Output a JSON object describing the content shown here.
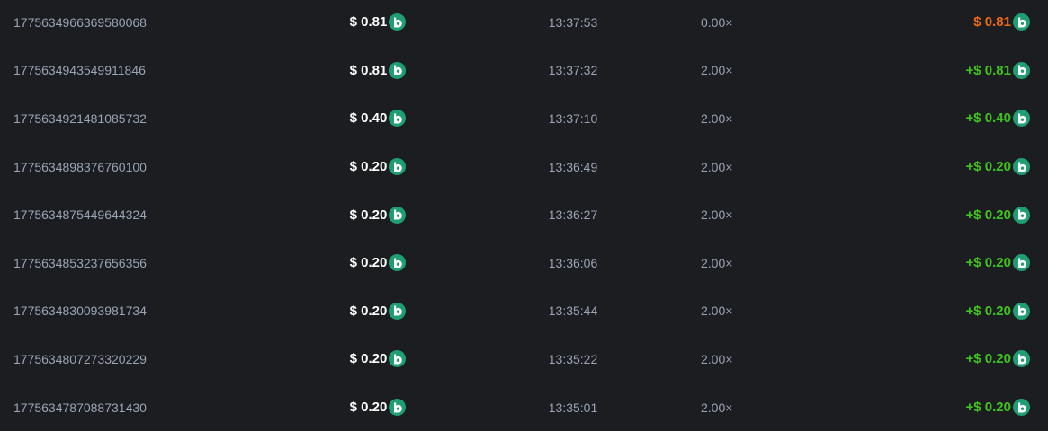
{
  "colors": {
    "loss": "#f06a14",
    "win": "#3fc41c",
    "coin": "#1f9e73"
  },
  "coin_icon": "green-circle-b-coin-icon",
  "rows": [
    {
      "id": "1775634966369580068",
      "bet": "$ 0.81",
      "time": "13:37:53",
      "multiplier": "0.00×",
      "payout": "$ 0.81",
      "result": "loss"
    },
    {
      "id": "1775634943549911846",
      "bet": "$ 0.81",
      "time": "13:37:32",
      "multiplier": "2.00×",
      "payout": "+$ 0.81",
      "result": "win"
    },
    {
      "id": "1775634921481085732",
      "bet": "$ 0.40",
      "time": "13:37:10",
      "multiplier": "2.00×",
      "payout": "+$ 0.40",
      "result": "win"
    },
    {
      "id": "1775634898376760100",
      "bet": "$ 0.20",
      "time": "13:36:49",
      "multiplier": "2.00×",
      "payout": "+$ 0.20",
      "result": "win"
    },
    {
      "id": "1775634875449644324",
      "bet": "$ 0.20",
      "time": "13:36:27",
      "multiplier": "2.00×",
      "payout": "+$ 0.20",
      "result": "win"
    },
    {
      "id": "1775634853237656356",
      "bet": "$ 0.20",
      "time": "13:36:06",
      "multiplier": "2.00×",
      "payout": "+$ 0.20",
      "result": "win"
    },
    {
      "id": "1775634830093981734",
      "bet": "$ 0.20",
      "time": "13:35:44",
      "multiplier": "2.00×",
      "payout": "+$ 0.20",
      "result": "win"
    },
    {
      "id": "1775634807273320229",
      "bet": "$ 0.20",
      "time": "13:35:22",
      "multiplier": "2.00×",
      "payout": "+$ 0.20",
      "result": "win"
    },
    {
      "id": "1775634787088731430",
      "bet": "$ 0.20",
      "time": "13:35:01",
      "multiplier": "2.00×",
      "payout": "+$ 0.20",
      "result": "win"
    }
  ]
}
